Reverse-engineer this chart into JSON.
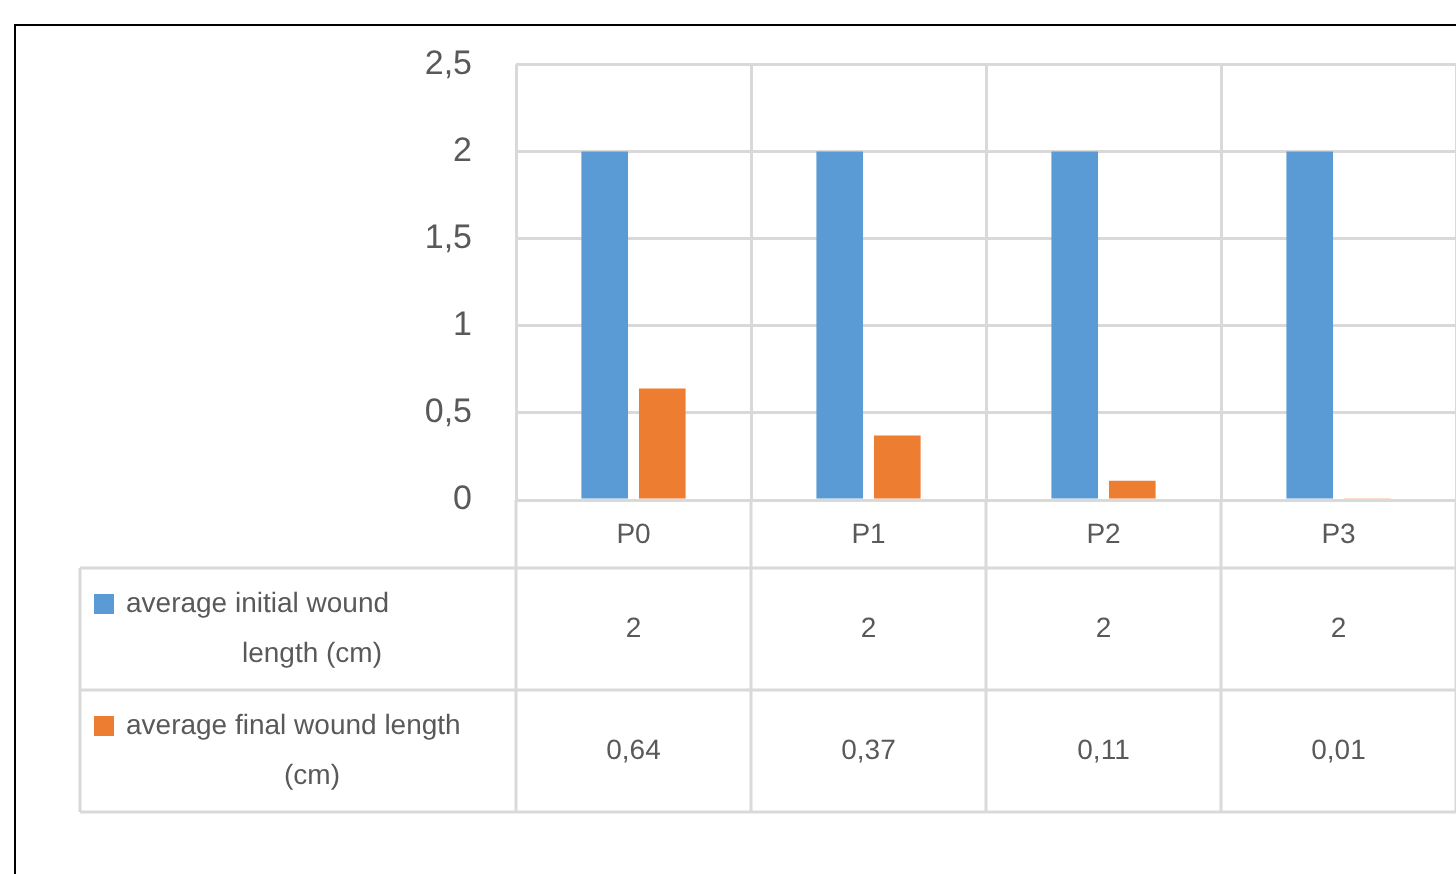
{
  "chart_data": {
    "type": "bar",
    "categories": [
      "P0",
      "P1",
      "P2",
      "P3"
    ],
    "series": [
      {
        "name": "average initial wound length (cm)",
        "color": "#5b9bd5",
        "values": [
          2,
          2,
          2,
          2
        ],
        "value_labels": [
          "2",
          "2",
          "2",
          "2"
        ]
      },
      {
        "name": "average final wound length (cm)",
        "color": "#ed7d31",
        "values": [
          0.64,
          0.37,
          0.11,
          0.01
        ],
        "value_labels": [
          "0,64",
          "0,37",
          "0,11",
          "0,01"
        ]
      }
    ],
    "ylim": [
      0,
      2.5
    ],
    "yticks": [
      0,
      {
        "value": 0.5,
        "label": "0,5"
      },
      1,
      {
        "value": 1.5,
        "label": "1,5"
      },
      2,
      {
        "value": 2.5,
        "label": "2,5"
      }
    ],
    "grid": true,
    "legend": "bottom"
  }
}
